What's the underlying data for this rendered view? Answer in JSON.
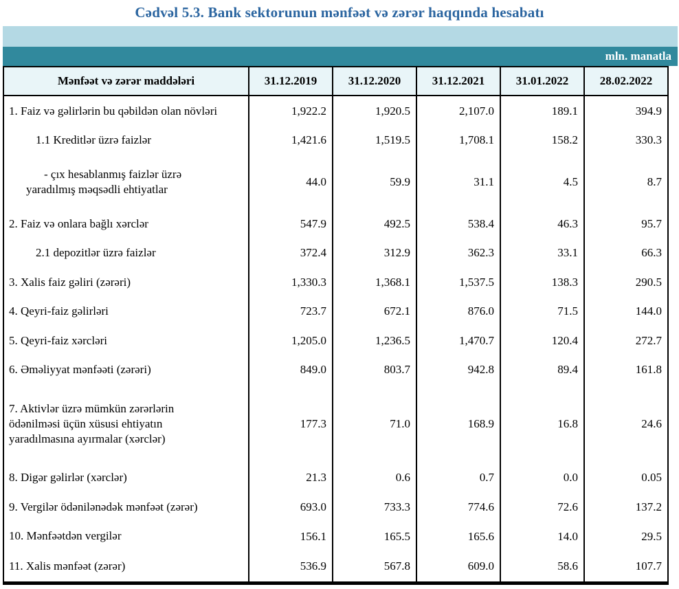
{
  "page": {
    "title": "Cədvəl 5.3. Bank sektorunun mənfəət və zərər haqqında hesabatı",
    "unit_label": "mln. manatla"
  },
  "colors": {
    "title_blue": "#2b65a0",
    "band_light_blue": "#b4d9e4",
    "band_teal": "#31899d",
    "header_cell_bg": "#e9f5f8",
    "border": "#000000",
    "unit_label_text": "#ffffff"
  },
  "table": {
    "columns": [
      "Mənfəət və zərər maddələri",
      "31.12.2019",
      "31.12.2020",
      "31.12.2021",
      "31.01.2022",
      "28.02.2022"
    ],
    "rows": [
      {
        "label": "1. Faiz və gəlirlərin bu qəbildən olan növləri",
        "indent": 0,
        "values": [
          "1,922.2",
          "1,920.5",
          "2,107.0",
          "189.1",
          "394.9"
        ]
      },
      {
        "label": "1.1 Kreditlər üzrə faizlər",
        "indent": 1,
        "values": [
          "1,421.6",
          "1,519.5",
          "1,708.1",
          "158.2",
          "330.3"
        ]
      },
      {
        "label": "-  çıx hesablanmış faizlər üzrə\nyaradılmış məqsədli ehtiyatlar",
        "indent": 2,
        "values": [
          "44.0",
          "59.9",
          "31.1",
          "4.5",
          "8.7"
        ]
      },
      {
        "label": "2. Faiz və onlara bağlı xərclər",
        "indent": 0,
        "values": [
          "547.9",
          "492.5",
          "538.4",
          "46.3",
          "95.7"
        ]
      },
      {
        "label": "2.1 depozitlər üzrə faizlər",
        "indent": 1,
        "values": [
          "372.4",
          "312.9",
          "362.3",
          "33.1",
          "66.3"
        ]
      },
      {
        "label": "3. Xalis faiz gəliri (zərəri)",
        "indent": 0,
        "values": [
          "1,330.3",
          "1,368.1",
          "1,537.5",
          "138.3",
          "290.5"
        ]
      },
      {
        "label": "4. Qeyri-faiz gəlirləri",
        "indent": 0,
        "values": [
          "723.7",
          "672.1",
          "876.0",
          "71.5",
          "144.0"
        ]
      },
      {
        "label": "5. Qeyri-faiz xərcləri",
        "indent": 0,
        "values": [
          "1,205.0",
          "1,236.5",
          "1,470.7",
          "120.4",
          "272.7"
        ]
      },
      {
        "label": "6. Əməliyyat mənfəəti (zərəri)",
        "indent": 0,
        "values": [
          "849.0",
          "803.7",
          "942.8",
          "89.4",
          "161.8"
        ]
      },
      {
        "label": "7. Aktivlər üzrə mümkün zərərlərin\nödənilməsi üçün xüsusi ehtiyatın\nyaradılmasına ayırmalar (xərclər)",
        "indent": 0,
        "values": [
          "177.3",
          "71.0",
          "168.9",
          "16.8",
          "24.6"
        ]
      },
      {
        "label": "8. Digər gəlirlər (xərclər)",
        "indent": 0,
        "values": [
          "21.3",
          "0.6",
          "0.7",
          "0.0",
          "0.05"
        ]
      },
      {
        "label": "9. Vergilər ödənilənədək mənfəət (zərər)",
        "indent": 0,
        "values": [
          "693.0",
          "733.3",
          "774.6",
          "72.6",
          "137.2"
        ]
      },
      {
        "label": "10. Mənfəətdən vergilər",
        "indent": 0,
        "values": [
          "156.1",
          "165.5",
          "165.6",
          "14.0",
          "29.5"
        ]
      },
      {
        "label": "11. Xalis mənfəət (zərər)",
        "indent": 0,
        "values": [
          "536.9",
          "567.8",
          "609.0",
          "58.6",
          "107.7"
        ]
      }
    ]
  }
}
